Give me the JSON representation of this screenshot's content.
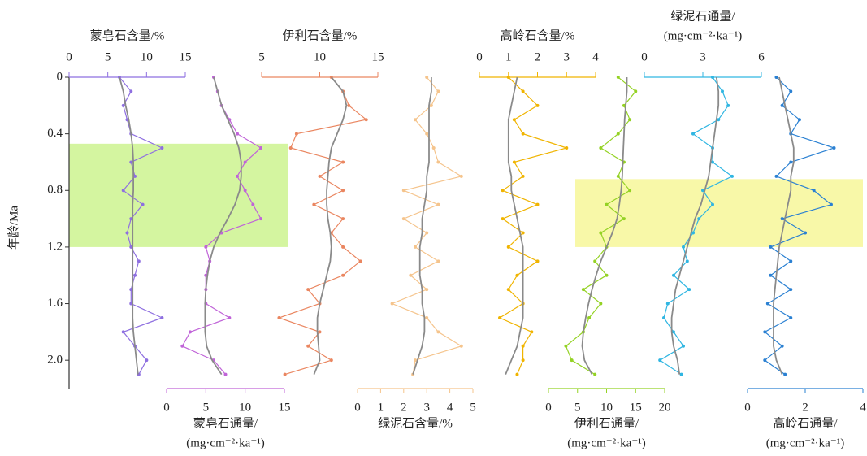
{
  "chart_data": {
    "type": "line",
    "ylabel": "年龄/Ma",
    "y": [
      0,
      0.1,
      0.2,
      0.3,
      0.4,
      0.5,
      0.6,
      0.7,
      0.8,
      0.9,
      1.0,
      1.1,
      1.2,
      1.3,
      1.4,
      1.5,
      1.6,
      1.7,
      1.8,
      1.9,
      2.0,
      2.1
    ],
    "ylim": [
      0,
      2.2
    ],
    "yticks": [
      0,
      0.4,
      0.8,
      1.2,
      1.6,
      {
        "value": 2,
        "label": "2.0"
      }
    ],
    "highlights": [
      {
        "from": 0.47,
        "to": 1.2,
        "color": "#d4f5a0"
      },
      {
        "from": 0.72,
        "to": 1.2,
        "color": "#f8f8a8"
      }
    ],
    "trend_color": "#8a8a8a",
    "panels": [
      {
        "xlabel": [
          "蒙皂石含量/%"
        ],
        "axis": "top",
        "xlim": [
          0,
          15
        ],
        "xticks": [
          0,
          5,
          10,
          15
        ],
        "color": "#8e6fe0",
        "values": [
          6.5,
          8,
          7,
          7.5,
          8,
          12,
          8,
          8.5,
          7,
          9.5,
          8,
          7.5,
          8,
          9,
          8.5,
          8,
          8,
          12,
          7,
          8.5,
          10,
          9
        ],
        "trend": [
          6.5,
          7,
          7.3,
          7.7,
          8,
          8.2,
          8.3,
          8.3,
          8.3,
          8.2,
          8.2,
          8.2,
          8.2,
          8.2,
          8.2,
          8.2,
          8.2,
          8.2,
          8.3,
          8.5,
          8.7,
          8.9
        ]
      },
      {
        "xlabel": [
          "蒙皂石通量/",
          "(mg·cm⁻²·ka⁻¹)"
        ],
        "axis": "bottom",
        "xlim": [
          0,
          15
        ],
        "xticks": [
          0,
          5,
          10,
          15
        ],
        "color": "#c064d8",
        "values": [
          6,
          6.5,
          7,
          8,
          9,
          12,
          10,
          9,
          10,
          11,
          12,
          7,
          5,
          5.5,
          5,
          5,
          5,
          8,
          3,
          2,
          6,
          7.5
        ],
        "trend": [
          6,
          6.5,
          7,
          7.8,
          8.6,
          9.2,
          9.5,
          9.5,
          9.3,
          8.7,
          7.8,
          6.8,
          6,
          5.5,
          5.2,
          5,
          4.9,
          4.9,
          4.9,
          5.1,
          5.8,
          7
        ]
      },
      {
        "xlabel": [
          "伊利石含量/%"
        ],
        "axis": "top",
        "xlim": [
          5,
          15
        ],
        "xticks": [
          5,
          10,
          15
        ],
        "color": "#ea8660",
        "values": [
          11,
          12,
          12.5,
          14,
          8,
          7.5,
          12,
          10,
          12,
          9.5,
          12,
          11,
          12,
          13.5,
          12,
          9,
          10,
          6.5,
          10,
          9,
          11,
          7
        ],
        "trend": [
          11,
          12,
          12.3,
          12,
          11.5,
          11,
          10.8,
          10.7,
          10.6,
          10.6,
          10.7,
          10.9,
          11,
          10.9,
          10.6,
          10.3,
          10,
          9.8,
          9.8,
          9.9,
          10,
          9.5
        ]
      },
      {
        "xlabel": [
          "绿泥石含量/%"
        ],
        "axis": "bottom",
        "xlim": [
          0,
          5
        ],
        "xticks": [
          0,
          1,
          2,
          3,
          4,
          5
        ],
        "color": "#f5c48c",
        "values": [
          3,
          3.5,
          3.2,
          2.5,
          3,
          3.3,
          3.5,
          4.5,
          2,
          3.5,
          2,
          3,
          2.5,
          3.5,
          2.3,
          3,
          1.5,
          3,
          3.5,
          4.5,
          2.5,
          2.4
        ],
        "trend": [
          3.2,
          3.2,
          3.1,
          3.1,
          3.1,
          3.1,
          3.1,
          3,
          3,
          2.9,
          2.8,
          2.8,
          2.7,
          2.7,
          2.7,
          2.8,
          2.8,
          2.9,
          2.9,
          2.8,
          2.6,
          2.4
        ]
      },
      {
        "xlabel": [
          "高岭石含量/%"
        ],
        "axis": "top",
        "xlim": [
          0,
          4
        ],
        "xticks": [
          0,
          1,
          2,
          3,
          4
        ],
        "color": "#f0b400",
        "values": [
          1,
          1.5,
          2,
          1.2,
          1.5,
          3,
          1.2,
          1.5,
          0.8,
          2,
          0.8,
          1.5,
          1,
          2,
          1.3,
          1,
          1.5,
          0.7,
          1.8,
          1.5,
          1.5,
          1.3
        ],
        "trend": [
          1.3,
          1.2,
          1.1,
          1,
          1,
          1,
          1,
          1.1,
          1.1,
          1.2,
          1.3,
          1.4,
          1.5,
          1.5,
          1.5,
          1.5,
          1.5,
          1.5,
          1.4,
          1.3,
          1.1,
          0.9
        ]
      },
      {
        "xlabel": [
          "伊利石通量/",
          "(mg·cm⁻²·ka⁻¹)"
        ],
        "axis": "bottom",
        "xlim": [
          0,
          20
        ],
        "xticks": [
          0,
          5,
          10,
          15,
          20
        ],
        "color": "#94d224",
        "values": [
          12,
          15,
          13,
          14,
          12,
          9,
          13,
          12,
          14,
          10,
          13,
          9,
          10,
          8,
          10,
          6,
          9,
          7,
          6,
          3,
          4,
          8
        ],
        "trend": [
          13.5,
          13.5,
          13.3,
          13.1,
          13,
          12.9,
          12.8,
          12.7,
          12.5,
          12.2,
          11.8,
          11,
          10,
          9,
          8.2,
          7.5,
          6.9,
          6.4,
          6,
          5.8,
          6.2,
          7.5
        ]
      },
      {
        "xlabel": [
          "绿泥石通量/",
          "(mg·cm⁻²·ka⁻¹)"
        ],
        "axis": "top",
        "xlim": [
          0,
          6
        ],
        "xticks": [
          0,
          3,
          6
        ],
        "color": "#30b6e2",
        "values": [
          3.5,
          4,
          4.3,
          3.8,
          2.5,
          3.5,
          3.5,
          4.5,
          3,
          3.5,
          2.8,
          2.5,
          2,
          2.2,
          1.5,
          2.3,
          1.2,
          1,
          1.5,
          2,
          0.8,
          1.9
        ],
        "trend": [
          3.7,
          3.8,
          3.8,
          3.7,
          3.6,
          3.5,
          3.4,
          3.3,
          3.1,
          2.9,
          2.6,
          2.4,
          2.2,
          2,
          1.8,
          1.6,
          1.5,
          1.4,
          1.4,
          1.5,
          1.7,
          1.8
        ]
      },
      {
        "xlabel": [
          "高岭石通量/",
          "(mg·cm⁻²·ka⁻¹)"
        ],
        "axis": "bottom",
        "xlim": [
          0,
          4
        ],
        "xticks": [
          0,
          2,
          4
        ],
        "color": "#2a80d2",
        "values": [
          1,
          1.5,
          1.2,
          1.8,
          1.5,
          3,
          1.5,
          1,
          2.3,
          2.9,
          1.2,
          2,
          0.8,
          1.5,
          0.8,
          1.5,
          0.7,
          1.5,
          0.6,
          1.2,
          0.6,
          1.3
        ],
        "trend": [
          1.1,
          1.2,
          1.3,
          1.4,
          1.5,
          1.6,
          1.6,
          1.5,
          1.5,
          1.4,
          1.3,
          1.2,
          1.1,
          1.05,
          1,
          0.95,
          0.9,
          0.9,
          0.9,
          0.9,
          1,
          1.2
        ]
      }
    ]
  }
}
